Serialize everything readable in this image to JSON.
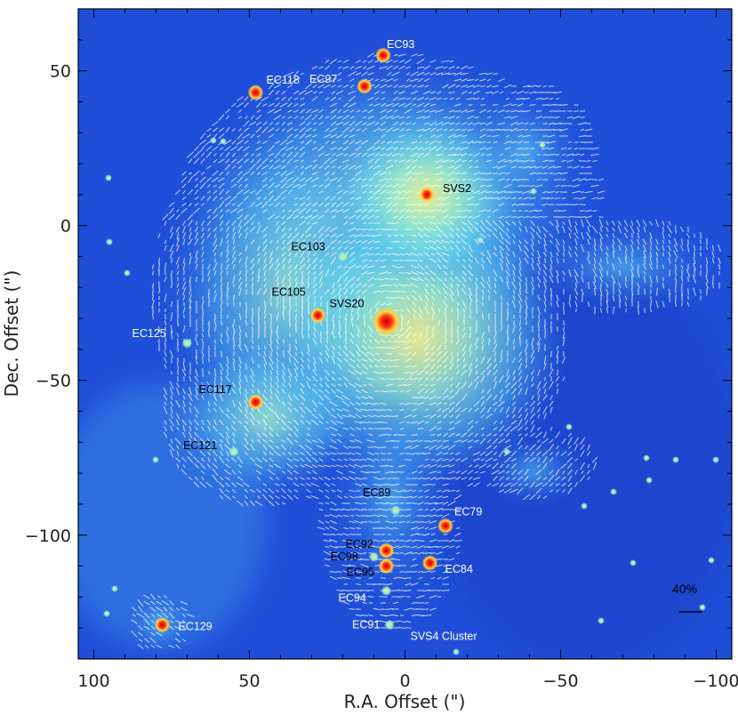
{
  "axes": {
    "xlabel": "R.A. Offset (\")",
    "ylabel": "Dec. Offset (\")",
    "xlim": [
      105,
      -105
    ],
    "ylim": [
      -140,
      70
    ],
    "x_ticks": [
      100,
      50,
      0,
      -50,
      -100
    ],
    "x_tick_labels": [
      "100",
      "50",
      "0",
      "−50",
      "−100"
    ],
    "y_ticks": [
      50,
      0,
      -50,
      -100
    ],
    "y_tick_labels": [
      "50",
      "0",
      "−50",
      "−100"
    ]
  },
  "sources": [
    {
      "name": "EC93",
      "x": 7,
      "y": 55,
      "label_color": "#ffffff"
    },
    {
      "name": "EC118",
      "x": 48,
      "y": 43,
      "label_color": "#ffffff"
    },
    {
      "name": "EC97",
      "x": 13,
      "y": 45,
      "label_color": "#ffffff"
    },
    {
      "name": "SVS2",
      "x": -7,
      "y": 10,
      "label_color": "#000000"
    },
    {
      "name": "EC103",
      "x": 20,
      "y": -10,
      "label_color": "#000000"
    },
    {
      "name": "EC105",
      "x": 28,
      "y": -29,
      "label_color": "#000000"
    },
    {
      "name": "SVS20",
      "x": 6,
      "y": -31,
      "label_color": "#000000"
    },
    {
      "name": "EC125",
      "x": 70,
      "y": -38,
      "label_color": "#ffffff"
    },
    {
      "name": "EC117",
      "x": 48,
      "y": -57,
      "label_color": "#000000"
    },
    {
      "name": "EC121",
      "x": 55,
      "y": -73,
      "label_color": "#000000"
    },
    {
      "name": "EC89",
      "x": 3,
      "y": -92,
      "label_color": "#000000"
    },
    {
      "name": "EC79",
      "x": -13,
      "y": -97,
      "label_color": "#ffffff"
    },
    {
      "name": "EC92",
      "x": 6,
      "y": -105,
      "label_color": "#000000"
    },
    {
      "name": "EC98",
      "x": 10,
      "y": -107,
      "label_color": "#000000"
    },
    {
      "name": "EC84",
      "x": -8,
      "y": -109,
      "label_color": "#ffffff"
    },
    {
      "name": "EC95",
      "x": 6,
      "y": -110,
      "label_color": "#000000"
    },
    {
      "name": "EC94",
      "x": 6,
      "y": -118,
      "label_color": "#ffffff"
    },
    {
      "name": "EC91",
      "x": 5,
      "y": -129,
      "label_color": "#ffffff"
    },
    {
      "name": "EC129",
      "x": 78,
      "y": -129,
      "label_color": "#ffffff"
    }
  ],
  "cluster": {
    "name": "SVS4 Cluster",
    "x": 0,
    "y": -110,
    "radius": 27
  },
  "scale_bar": {
    "label": "40%"
  },
  "colors": {
    "background_blue": "#1f4fd8",
    "nebula_cyan": "#6fe3e0",
    "star_red": "#e31a1c",
    "vectors": "#ffffff"
  }
}
